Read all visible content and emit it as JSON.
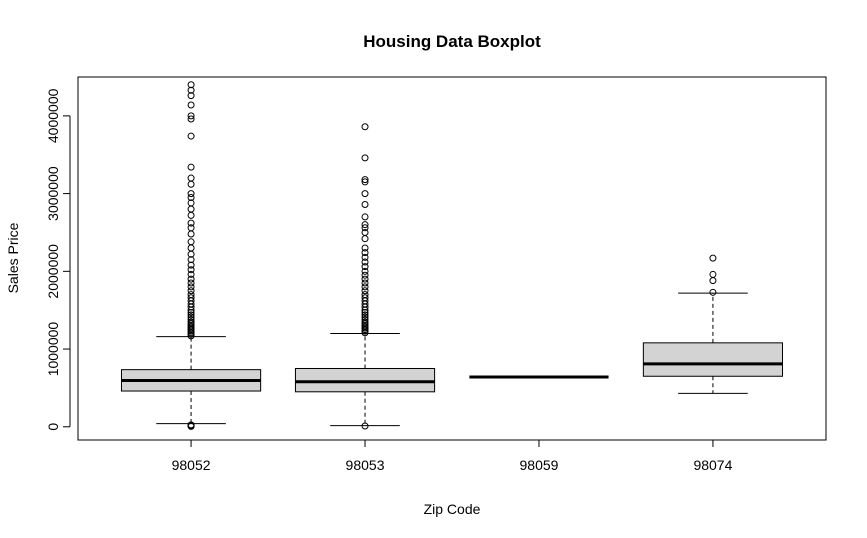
{
  "chart_data": {
    "type": "boxplot",
    "title": "Housing Data Boxplot",
    "xlabel": "Zip Code",
    "ylabel": "Sales Price",
    "ylim": [
      -170000,
      4500000
    ],
    "yticks": [
      0,
      1000000,
      2000000,
      3000000,
      4000000
    ],
    "ytick_labels": [
      "0",
      "1000000",
      "2000000",
      "3000000",
      "4000000"
    ],
    "categories": [
      "98052",
      "98053",
      "98059",
      "98074"
    ],
    "box_fill": "#d3d3d3",
    "boxes": [
      {
        "category": "98052",
        "whisker_low": 40000,
        "q1": 460000,
        "median": 595000,
        "q3": 735000,
        "whisker_high": 1160000,
        "outliers": [
          5000,
          10000,
          15000,
          20000,
          25000,
          1170000,
          1190000,
          1210000,
          1230000,
          1250000,
          1270000,
          1290000,
          1310000,
          1330000,
          1350000,
          1380000,
          1410000,
          1440000,
          1470000,
          1500000,
          1540000,
          1580000,
          1620000,
          1660000,
          1700000,
          1750000,
          1800000,
          1850000,
          1900000,
          1960000,
          2020000,
          2080000,
          2150000,
          2220000,
          2300000,
          2380000,
          2480000,
          2560000,
          2620000,
          2720000,
          2800000,
          2880000,
          2950000,
          3000000,
          3120000,
          3200000,
          3340000,
          3740000,
          3960000,
          4000000,
          4140000,
          4260000,
          4330000,
          4400000
        ]
      },
      {
        "category": "98053",
        "whisker_low": 15000,
        "q1": 450000,
        "median": 580000,
        "q3": 750000,
        "whisker_high": 1200000,
        "outliers": [
          10000,
          1210000,
          1230000,
          1250000,
          1270000,
          1290000,
          1310000,
          1330000,
          1350000,
          1380000,
          1410000,
          1440000,
          1470000,
          1500000,
          1540000,
          1580000,
          1620000,
          1660000,
          1700000,
          1750000,
          1800000,
          1850000,
          1900000,
          1950000,
          2000000,
          2060000,
          2120000,
          2180000,
          2240000,
          2300000,
          2420000,
          2500000,
          2560000,
          2600000,
          2700000,
          2860000,
          3000000,
          3150000,
          3180000,
          3460000,
          3860000
        ]
      },
      {
        "category": "98059",
        "whisker_low": 640000,
        "q1": 640000,
        "median": 640000,
        "q3": 640000,
        "whisker_high": 640000,
        "outliers": []
      },
      {
        "category": "98074",
        "whisker_low": 430000,
        "q1": 650000,
        "median": 810000,
        "q3": 1080000,
        "whisker_high": 1720000,
        "outliers": [
          1730000,
          1880000,
          1960000,
          2170000
        ]
      }
    ]
  }
}
